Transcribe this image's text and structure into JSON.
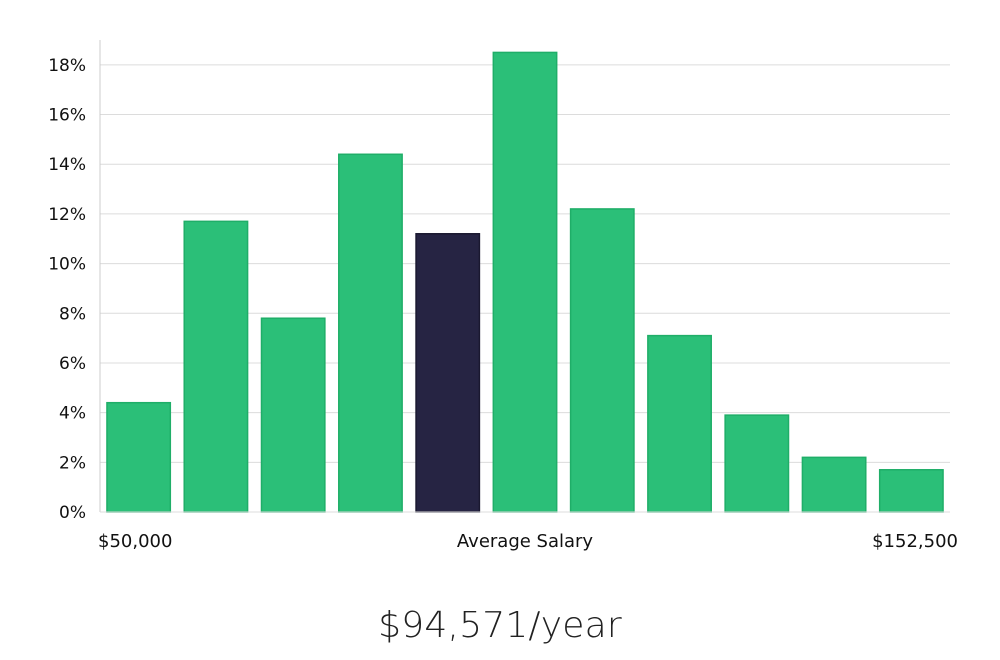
{
  "colors": {
    "bar": "#2bbf78",
    "bar_stroke": "#1fae68",
    "highlight": "#262443",
    "grid": "#dcdcdc",
    "axis": "#cccccc",
    "text": "#111111"
  },
  "chart_data": {
    "type": "bar",
    "categories": [
      "",
      "",
      "",
      "",
      "",
      "",
      "",
      "",
      "",
      "",
      ""
    ],
    "values": [
      4.4,
      11.7,
      7.8,
      14.4,
      11.2,
      18.5,
      12.2,
      7.1,
      3.9,
      2.2,
      1.7
    ],
    "highlight_index": 4,
    "ylim": [
      0,
      19
    ],
    "yticks": [
      "0%",
      "2%",
      "4%",
      "6%",
      "8%",
      "10%",
      "12%",
      "14%",
      "16%",
      "18%"
    ],
    "ytick_values": [
      0,
      2,
      4,
      6,
      8,
      10,
      12,
      14,
      16,
      18
    ],
    "xlabels": {
      "left": "$50,000",
      "center": "Average Salary",
      "right": "$152,500"
    },
    "grid": true,
    "legend": "none"
  },
  "summary": {
    "salary": "$94,571/year"
  }
}
